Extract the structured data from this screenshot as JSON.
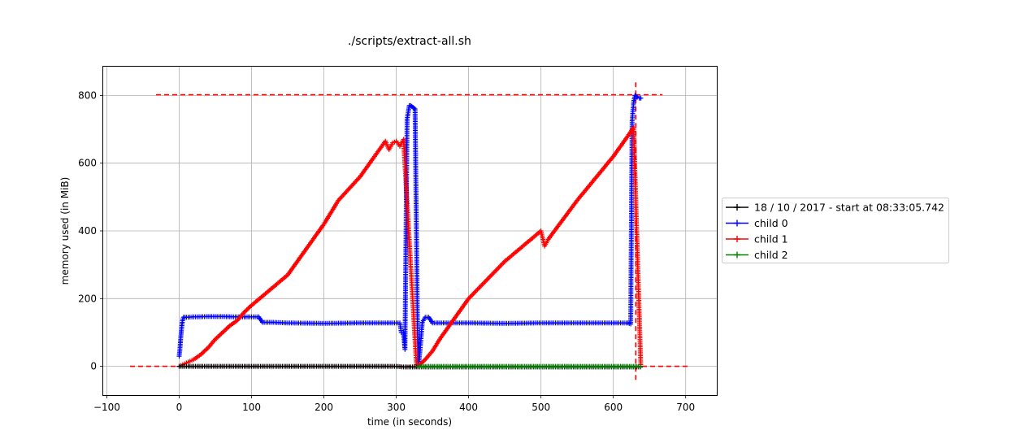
{
  "chart_data": {
    "type": "line",
    "title": "./scripts/extract-all.sh",
    "xlabel": "time (in seconds)",
    "ylabel": "memory used (in MiB)",
    "xlim": [
      -105,
      743
    ],
    "ylim": [
      -85,
      885
    ],
    "xticks": [
      -100,
      0,
      100,
      200,
      300,
      400,
      500,
      600,
      700
    ],
    "yticks": [
      0,
      200,
      400,
      600,
      800
    ],
    "grid": true,
    "legend_position": "right",
    "series": [
      {
        "name": "18 / 10 / 2017 - start at 08:33:05.742",
        "color": "#000000",
        "marker": "+",
        "x": [
          0,
          50,
          100,
          150,
          200,
          250,
          300,
          310,
          320,
          330,
          340,
          400,
          500,
          600,
          630,
          640
        ],
        "y": [
          0,
          0,
          0,
          0,
          0,
          0,
          0,
          -2,
          -2,
          -2,
          -2,
          -2,
          -2,
          -2,
          -2,
          -2
        ]
      },
      {
        "name": "child 0",
        "color": "#0000ff",
        "marker": "+",
        "x": [
          0,
          1,
          2,
          3,
          4,
          5,
          6,
          10,
          20,
          40,
          60,
          80,
          100,
          110,
          115,
          130,
          150,
          200,
          250,
          300,
          305,
          307,
          310,
          312,
          315,
          318,
          320,
          323,
          326,
          330,
          331,
          333,
          336,
          340,
          345,
          350,
          400,
          450,
          500,
          550,
          600,
          620,
          624,
          626,
          628,
          630,
          633,
          636,
          640
        ],
        "y": [
          30,
          50,
          80,
          105,
          125,
          140,
          145,
          145,
          146,
          147,
          147,
          146,
          146,
          146,
          130,
          130,
          128,
          127,
          128,
          128,
          128,
          100,
          100,
          50,
          730,
          770,
          770,
          765,
          760,
          0,
          10,
          50,
          130,
          145,
          145,
          128,
          128,
          127,
          128,
          128,
          128,
          128,
          125,
          725,
          780,
          800,
          795,
          792,
          792
        ]
      },
      {
        "name": "child 1",
        "color": "#ff0000",
        "marker": "+",
        "x": [
          0,
          10,
          20,
          30,
          40,
          50,
          60,
          70,
          80,
          90,
          100,
          150,
          200,
          220,
          250,
          260,
          270,
          285,
          290,
          295,
          300,
          305,
          310,
          328,
          330,
          340,
          350,
          360,
          400,
          450,
          500,
          505,
          510,
          550,
          600,
          610,
          620,
          628,
          638
        ],
        "y": [
          0,
          10,
          20,
          35,
          55,
          80,
          100,
          120,
          135,
          160,
          180,
          270,
          420,
          490,
          560,
          590,
          620,
          665,
          640,
          660,
          665,
          650,
          670,
          0,
          0,
          20,
          45,
          80,
          200,
          310,
          400,
          355,
          375,
          490,
          620,
          650,
          680,
          705,
          0
        ]
      },
      {
        "name": "child 2",
        "color": "#008000",
        "marker": "+",
        "x": [
          330,
          400,
          500,
          600,
          630,
          640
        ],
        "y": [
          0,
          0,
          0,
          0,
          0,
          0
        ]
      }
    ],
    "reference_lines": [
      {
        "orientation": "horizontal",
        "value": 802,
        "from": -32,
        "to": 668,
        "color": "#ff0000"
      },
      {
        "orientation": "horizontal",
        "value": 0,
        "from": -68,
        "to": 705,
        "color": "#ff0000"
      },
      {
        "orientation": "vertical",
        "value": 631,
        "from": -40,
        "to": 845,
        "color": "#ff0000"
      }
    ]
  }
}
